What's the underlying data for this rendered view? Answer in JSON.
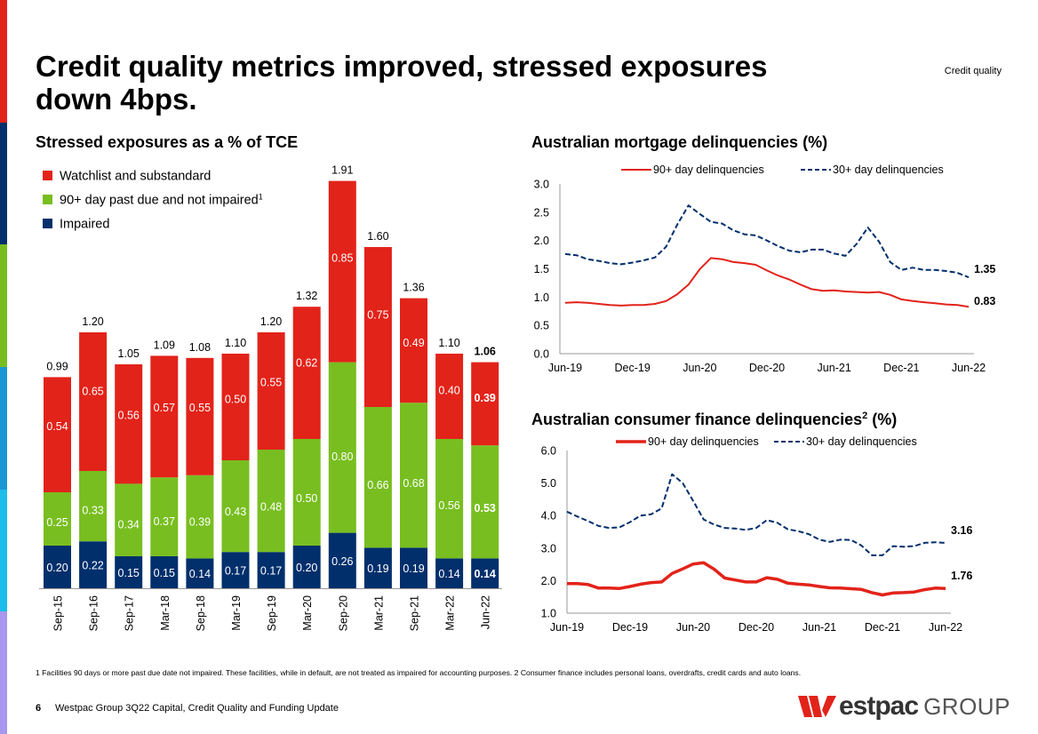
{
  "header": {
    "title": "Credit quality metrics improved, stressed exposures down 4bps.",
    "section": "Credit quality"
  },
  "brand_colors": {
    "red": "#e2231a",
    "navy": "#002f6c",
    "green": "#78be20",
    "blue": "#1a96d4",
    "cyan": "#1dbde9",
    "lavender": "#a898ee"
  },
  "stripe_colors": [
    "#e2231a",
    "#002f6c",
    "#78be20",
    "#1a96d4",
    "#1dbde9",
    "#a898ee"
  ],
  "left_chart_title": "Stressed exposures as a % of TCE",
  "mortgage_title": "Australian mortgage delinquencies (%)",
  "consumer_title_main": "Australian consumer finance delinquencies",
  "consumer_title_sup": "2",
  "consumer_title_tail": " (%)",
  "chart_data": [
    {
      "type": "bar",
      "stacked": true,
      "title": "Stressed exposures as a % of TCE",
      "categories": [
        "Sep-15",
        "Sep-16",
        "Sep-17",
        "Mar-18",
        "Sep-18",
        "Mar-19",
        "Sep-19",
        "Mar-20",
        "Sep-20",
        "Mar-21",
        "Sep-21",
        "Mar-22",
        "Jun-22"
      ],
      "series": [
        {
          "name": "Impaired",
          "color": "#002f6c",
          "values": [
            0.2,
            0.22,
            0.15,
            0.15,
            0.14,
            0.17,
            0.17,
            0.2,
            0.26,
            0.19,
            0.19,
            0.14,
            0.14
          ]
        },
        {
          "name": "90+ day past due and not impaired",
          "footnote": "1",
          "color": "#78be20",
          "values": [
            0.25,
            0.33,
            0.34,
            0.37,
            0.39,
            0.43,
            0.48,
            0.5,
            0.8,
            0.66,
            0.68,
            0.56,
            0.53
          ]
        },
        {
          "name": "Watchlist and substandard",
          "color": "#e2231a",
          "values": [
            0.54,
            0.65,
            0.56,
            0.57,
            0.55,
            0.5,
            0.55,
            0.62,
            0.85,
            0.75,
            0.49,
            0.4,
            0.39
          ]
        }
      ],
      "totals": [
        0.99,
        1.2,
        1.05,
        1.09,
        1.08,
        1.1,
        1.2,
        1.32,
        1.91,
        1.6,
        1.36,
        1.1,
        1.06
      ],
      "legend": [
        {
          "label": "Watchlist and substandard",
          "sup": "",
          "color": "#e2231a"
        },
        {
          "label": "90+ day past due and not impaired",
          "sup": "1",
          "color": "#78be20"
        },
        {
          "label": "Impaired",
          "sup": "",
          "color": "#002f6c"
        }
      ],
      "legend_position": "top-left",
      "highlight_last": true,
      "ylim": [
        0,
        2.0
      ]
    },
    {
      "type": "line",
      "title": "Australian mortgage delinquencies (%)",
      "x_ticks": [
        "Jun-19",
        "Dec-19",
        "Jun-20",
        "Dec-20",
        "Jun-21",
        "Dec-21",
        "Jun-22"
      ],
      "y_ticks": [
        "0.0",
        "0.5",
        "1.0",
        "1.5",
        "2.0",
        "2.5",
        "3.0"
      ],
      "ylim": [
        0,
        3.0
      ],
      "points_per_series": 37,
      "x_period": "monthly Jun-19 to Jun-22",
      "legend_position": "top",
      "series": [
        {
          "name": "90+ day delinquencies",
          "style": "solid",
          "color": "#e2231a",
          "end_label": "0.83",
          "values": [
            0.9,
            0.91,
            0.9,
            0.88,
            0.86,
            0.85,
            0.86,
            0.86,
            0.88,
            0.93,
            1.05,
            1.22,
            1.49,
            1.69,
            1.67,
            1.62,
            1.6,
            1.57,
            1.47,
            1.38,
            1.31,
            1.22,
            1.14,
            1.11,
            1.12,
            1.1,
            1.09,
            1.08,
            1.09,
            1.04,
            0.96,
            0.93,
            0.91,
            0.89,
            0.87,
            0.86,
            0.83
          ]
        },
        {
          "name": "30+ day delinquencies",
          "style": "dashed",
          "color": "#002f6c",
          "end_label": "1.35",
          "values": [
            1.76,
            1.74,
            1.67,
            1.64,
            1.6,
            1.58,
            1.61,
            1.65,
            1.7,
            1.89,
            2.28,
            2.62,
            2.47,
            2.33,
            2.3,
            2.18,
            2.11,
            2.09,
            2.0,
            1.9,
            1.82,
            1.79,
            1.84,
            1.84,
            1.77,
            1.73,
            1.94,
            2.23,
            1.98,
            1.62,
            1.48,
            1.52,
            1.48,
            1.48,
            1.46,
            1.43,
            1.35
          ]
        }
      ]
    },
    {
      "type": "line",
      "title": "Australian consumer finance delinquencies (%)",
      "title_footnote": "2",
      "x_ticks": [
        "Jun-19",
        "Dec-19",
        "Jun-20",
        "Dec-20",
        "Jun-21",
        "Dec-21",
        "Jun-22"
      ],
      "y_ticks": [
        "1.0",
        "2.0",
        "3.0",
        "4.0",
        "5.0",
        "6.0"
      ],
      "ylim": [
        1.0,
        6.0
      ],
      "points_per_series": 37,
      "x_period": "monthly Jun-19 to Jun-22",
      "legend_position": "top",
      "series": [
        {
          "name": "90+ day delinquencies",
          "style": "solid",
          "color": "#e2231a",
          "end_label": "1.76",
          "values": [
            1.91,
            1.91,
            1.88,
            1.77,
            1.77,
            1.76,
            1.82,
            1.89,
            1.94,
            1.96,
            2.22,
            2.36,
            2.51,
            2.55,
            2.35,
            2.08,
            2.02,
            1.96,
            1.96,
            2.09,
            2.04,
            1.92,
            1.89,
            1.87,
            1.82,
            1.78,
            1.77,
            1.75,
            1.73,
            1.63,
            1.56,
            1.62,
            1.63,
            1.65,
            1.72,
            1.77,
            1.76
          ]
        },
        {
          "name": "30+ day delinquencies",
          "style": "dashed",
          "color": "#002f6c",
          "end_label": "3.16",
          "values": [
            4.12,
            3.97,
            3.83,
            3.68,
            3.62,
            3.64,
            3.8,
            4.0,
            4.04,
            4.22,
            5.27,
            5.0,
            4.45,
            3.88,
            3.72,
            3.62,
            3.6,
            3.56,
            3.62,
            3.86,
            3.78,
            3.58,
            3.52,
            3.43,
            3.26,
            3.19,
            3.26,
            3.25,
            3.08,
            2.78,
            2.78,
            3.06,
            3.04,
            3.06,
            3.16,
            3.18,
            3.16
          ]
        }
      ]
    }
  ],
  "footnote": "1 Facilities 90 days or more past due date not impaired. These facilities, while in default, are not treated as impaired for accounting purposes. 2 Consumer finance includes personal loans, overdrafts, credit cards and auto loans.",
  "footer": {
    "page_number": "6",
    "document_title": "Westpac Group 3Q22 Capital, Credit Quality and Funding Update",
    "logo_word": "estpac",
    "logo_group": "GROUP"
  }
}
